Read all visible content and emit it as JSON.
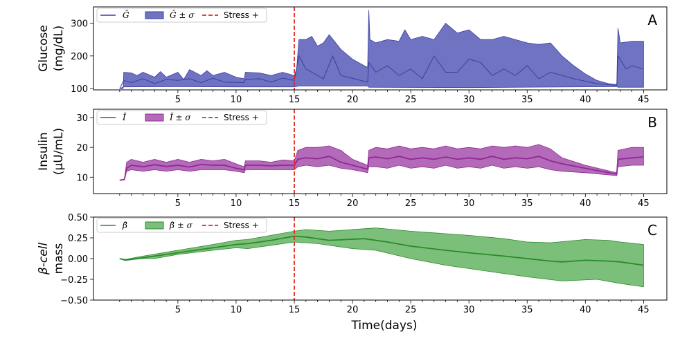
{
  "xlabel": "Time(days)",
  "stress_day": 15,
  "colors": {
    "stress": "#e0281e"
  },
  "chart_data": [
    {
      "type": "area",
      "panel_label": "A",
      "ylabel": [
        "Glucose",
        "(mg/dL)"
      ],
      "xlim": [
        -2.25,
        47
      ],
      "ylim": [
        96,
        350
      ],
      "xticks": [
        5,
        10,
        15,
        20,
        25,
        30,
        35,
        40,
        45
      ],
      "minor_xticks_step": 1,
      "yticks": [
        100,
        200,
        300
      ],
      "ytick_labels": [
        "100",
        "200",
        "300"
      ],
      "legend": [
        "Ḡ",
        "Ḡ ± σ",
        "Stress +"
      ],
      "legend_placement": "top-left",
      "line_color": "#3a3fa0",
      "fill_color": "#6f73c2",
      "mean": [
        [
          0,
          100
        ],
        [
          0.35,
          125
        ],
        [
          1,
          118
        ],
        [
          2,
          130
        ],
        [
          3,
          115
        ],
        [
          4,
          128
        ],
        [
          5,
          125
        ],
        [
          6,
          130
        ],
        [
          7,
          118
        ],
        [
          8,
          132
        ],
        [
          9,
          120
        ],
        [
          10.7,
          118
        ],
        [
          10.8,
          128
        ],
        [
          12,
          130
        ],
        [
          13,
          120
        ],
        [
          14,
          132
        ],
        [
          15,
          125
        ],
        [
          15.4,
          200
        ],
        [
          16,
          160
        ],
        [
          16.5,
          150
        ],
        [
          17.5,
          130
        ],
        [
          18.3,
          200
        ],
        [
          19,
          140
        ],
        [
          21.3,
          120
        ],
        [
          21.4,
          180
        ],
        [
          22,
          150
        ],
        [
          23,
          170
        ],
        [
          24,
          140
        ],
        [
          25,
          160
        ],
        [
          26,
          130
        ],
        [
          27,
          200
        ],
        [
          28,
          150
        ],
        [
          29,
          150
        ],
        [
          30,
          190
        ],
        [
          31,
          180
        ],
        [
          32,
          140
        ],
        [
          33,
          160
        ],
        [
          34,
          140
        ],
        [
          35,
          170
        ],
        [
          36,
          130
        ],
        [
          37,
          150
        ],
        [
          39,
          130
        ],
        [
          41,
          115
        ],
        [
          42.7,
          110
        ],
        [
          42.8,
          200
        ],
        [
          43.5,
          160
        ],
        [
          44,
          170
        ],
        [
          45,
          160
        ]
      ],
      "upper": [
        [
          0,
          100
        ],
        [
          0.3,
          100
        ],
        [
          0.35,
          150
        ],
        [
          1,
          148
        ],
        [
          1.5,
          140
        ],
        [
          2,
          150
        ],
        [
          3,
          135
        ],
        [
          3.5,
          152
        ],
        [
          4,
          135
        ],
        [
          5,
          150
        ],
        [
          5.5,
          128
        ],
        [
          6,
          158
        ],
        [
          7,
          140
        ],
        [
          7.5,
          155
        ],
        [
          8,
          140
        ],
        [
          9,
          150
        ],
        [
          10,
          135
        ],
        [
          10.7,
          130
        ],
        [
          10.8,
          150
        ],
        [
          12,
          148
        ],
        [
          13,
          140
        ],
        [
          14,
          150
        ],
        [
          15,
          140
        ],
        [
          15.2,
          160
        ],
        [
          15.4,
          250
        ],
        [
          16,
          250
        ],
        [
          16.5,
          260
        ],
        [
          17,
          230
        ],
        [
          17.5,
          240
        ],
        [
          18,
          265
        ],
        [
          19,
          220
        ],
        [
          20,
          190
        ],
        [
          21,
          170
        ],
        [
          21.3,
          165
        ],
        [
          21.4,
          340
        ],
        [
          21.5,
          250
        ],
        [
          22,
          240
        ],
        [
          23,
          250
        ],
        [
          24,
          245
        ],
        [
          24.5,
          280
        ],
        [
          25,
          250
        ],
        [
          26,
          260
        ],
        [
          27,
          250
        ],
        [
          28,
          300
        ],
        [
          29,
          270
        ],
        [
          30,
          280
        ],
        [
          31,
          250
        ],
        [
          32,
          250
        ],
        [
          33,
          260
        ],
        [
          34,
          250
        ],
        [
          35,
          240
        ],
        [
          36,
          235
        ],
        [
          37,
          240
        ],
        [
          38,
          200
        ],
        [
          39,
          170
        ],
        [
          40,
          145
        ],
        [
          41,
          125
        ],
        [
          42,
          115
        ],
        [
          42.7,
          112
        ],
        [
          42.8,
          285
        ],
        [
          43,
          240
        ],
        [
          44,
          245
        ],
        [
          45,
          245
        ]
      ],
      "lower": [
        [
          0,
          100
        ],
        [
          0.35,
          105
        ],
        [
          5,
          106
        ],
        [
          10,
          105
        ],
        [
          15,
          105
        ],
        [
          15.4,
          108
        ],
        [
          21.3,
          108
        ],
        [
          21.4,
          104
        ],
        [
          30,
          103
        ],
        [
          42.7,
          106
        ],
        [
          42.8,
          104
        ],
        [
          45,
          104
        ]
      ]
    },
    {
      "type": "area",
      "panel_label": "B",
      "ylabel": [
        "Insulin",
        "(μU/mL)"
      ],
      "xlim": [
        -2.25,
        47
      ],
      "ylim": [
        4.5,
        32.8
      ],
      "xticks": [
        5,
        10,
        15,
        20,
        25,
        30,
        35,
        40,
        45
      ],
      "minor_xticks_step": 1,
      "yticks": [
        10,
        20,
        30
      ],
      "ytick_labels": [
        "10",
        "20",
        "30"
      ],
      "legend": [
        "Ī",
        "Ī ± σ",
        "Stress +"
      ],
      "legend_placement": "top-left",
      "line_color": "#8e2a93",
      "fill_color": "#b36ab8",
      "mean": [
        [
          0,
          9
        ],
        [
          0.4,
          9.2
        ],
        [
          0.6,
          13
        ],
        [
          1,
          14
        ],
        [
          2,
          13.5
        ],
        [
          3,
          14.2
        ],
        [
          4,
          13.6
        ],
        [
          5,
          14
        ],
        [
          6,
          13.4
        ],
        [
          7,
          14.3
        ],
        [
          8,
          14
        ],
        [
          9,
          14
        ],
        [
          10,
          13
        ],
        [
          10.7,
          12.5
        ],
        [
          10.8,
          14
        ],
        [
          12,
          14
        ],
        [
          13,
          13.8
        ],
        [
          14,
          14
        ],
        [
          15,
          14
        ],
        [
          15.3,
          16
        ],
        [
          16,
          16.5
        ],
        [
          17,
          16.2
        ],
        [
          18,
          17
        ],
        [
          19,
          15
        ],
        [
          20,
          14
        ],
        [
          21.3,
          12.7
        ],
        [
          21.4,
          16.5
        ],
        [
          22,
          16.8
        ],
        [
          23,
          16.2
        ],
        [
          24,
          17
        ],
        [
          25,
          16
        ],
        [
          26,
          16.5
        ],
        [
          27,
          16
        ],
        [
          28,
          16.8
        ],
        [
          29,
          16
        ],
        [
          30,
          16.5
        ],
        [
          31,
          16
        ],
        [
          32,
          17
        ],
        [
          33,
          16
        ],
        [
          34,
          16.5
        ],
        [
          35,
          16.2
        ],
        [
          36,
          17
        ],
        [
          37,
          15.5
        ],
        [
          38,
          14.5
        ],
        [
          40,
          13
        ],
        [
          42.7,
          11
        ],
        [
          42.8,
          16
        ],
        [
          44,
          16.5
        ],
        [
          45,
          16.8
        ]
      ],
      "upper": [
        [
          0,
          9
        ],
        [
          0.4,
          9.2
        ],
        [
          0.6,
          15
        ],
        [
          1,
          16
        ],
        [
          2,
          15
        ],
        [
          3,
          16
        ],
        [
          4,
          15
        ],
        [
          5,
          16
        ],
        [
          6,
          15
        ],
        [
          7,
          16
        ],
        [
          8,
          15.5
        ],
        [
          9,
          16
        ],
        [
          10,
          14.5
        ],
        [
          10.7,
          13.5
        ],
        [
          10.8,
          15.5
        ],
        [
          12,
          15.5
        ],
        [
          13,
          15
        ],
        [
          14,
          15.8
        ],
        [
          15,
          15.5
        ],
        [
          15.3,
          19
        ],
        [
          16,
          20
        ],
        [
          17,
          20
        ],
        [
          18,
          20.5
        ],
        [
          19,
          19
        ],
        [
          20,
          16
        ],
        [
          21.3,
          14
        ],
        [
          21.4,
          19
        ],
        [
          22,
          20
        ],
        [
          23,
          19.5
        ],
        [
          24,
          20.5
        ],
        [
          25,
          19.5
        ],
        [
          26,
          20
        ],
        [
          27,
          19.5
        ],
        [
          28,
          20.5
        ],
        [
          29,
          19.5
        ],
        [
          30,
          20
        ],
        [
          31,
          19.5
        ],
        [
          32,
          20.5
        ],
        [
          33,
          20
        ],
        [
          34,
          20.5
        ],
        [
          35,
          20
        ],
        [
          36,
          21
        ],
        [
          37,
          19.5
        ],
        [
          38,
          16.5
        ],
        [
          40,
          14
        ],
        [
          42.7,
          11.5
        ],
        [
          42.8,
          19
        ],
        [
          44,
          20
        ],
        [
          45,
          20
        ]
      ],
      "lower": [
        [
          0,
          9
        ],
        [
          0.4,
          9.2
        ],
        [
          0.6,
          12
        ],
        [
          1,
          12.5
        ],
        [
          2,
          12
        ],
        [
          3,
          12.5
        ],
        [
          4,
          12
        ],
        [
          5,
          12.5
        ],
        [
          6,
          12
        ],
        [
          7,
          12.5
        ],
        [
          8,
          12.5
        ],
        [
          9,
          12.5
        ],
        [
          10,
          12
        ],
        [
          10.7,
          11.5
        ],
        [
          10.8,
          12.5
        ],
        [
          12,
          12.5
        ],
        [
          13,
          12.5
        ],
        [
          14,
          12.5
        ],
        [
          15,
          12.5
        ],
        [
          15.3,
          13.5
        ],
        [
          16,
          14
        ],
        [
          17,
          13.5
        ],
        [
          18,
          14
        ],
        [
          19,
          13
        ],
        [
          20,
          12.5
        ],
        [
          21.3,
          11.5
        ],
        [
          21.4,
          13.5
        ],
        [
          22,
          13.5
        ],
        [
          23,
          13
        ],
        [
          24,
          14
        ],
        [
          25,
          13
        ],
        [
          26,
          13.5
        ],
        [
          27,
          13
        ],
        [
          28,
          14
        ],
        [
          29,
          13
        ],
        [
          30,
          13.5
        ],
        [
          31,
          13
        ],
        [
          32,
          14
        ],
        [
          33,
          13
        ],
        [
          34,
          13.5
        ],
        [
          35,
          13
        ],
        [
          36,
          13.5
        ],
        [
          37,
          12.5
        ],
        [
          38,
          12
        ],
        [
          40,
          11.5
        ],
        [
          42.7,
          10.5
        ],
        [
          42.8,
          13.5
        ],
        [
          44,
          14
        ],
        [
          45,
          14
        ]
      ]
    },
    {
      "type": "area",
      "panel_label": "C",
      "ylabel": [
        "β-cell",
        "mass"
      ],
      "xlim": [
        -2.25,
        47
      ],
      "ylim": [
        -0.5,
        0.5
      ],
      "xticks": [
        5,
        10,
        15,
        20,
        25,
        30,
        35,
        40,
        45
      ],
      "minor_xticks_step": 1,
      "yticks": [
        0.5,
        0.25,
        0,
        -0.25,
        -0.5
      ],
      "ytick_labels": [
        "0.50",
        "0.25",
        "0.00",
        "−0.25",
        "−0.50"
      ],
      "legend": [
        "β̄",
        "β̄ ± σ",
        "Stress +"
      ],
      "legend_placement": "top-left",
      "line_color": "#2a8a2a",
      "fill_color": "#7cbf7a",
      "mean": [
        [
          0,
          0
        ],
        [
          0.5,
          -0.02
        ],
        [
          2,
          0.01
        ],
        [
          5,
          0.07
        ],
        [
          8,
          0.13
        ],
        [
          10,
          0.17
        ],
        [
          11,
          0.18
        ],
        [
          13,
          0.22
        ],
        [
          15,
          0.27
        ],
        [
          16,
          0.26
        ],
        [
          18,
          0.22
        ],
        [
          21,
          0.24
        ],
        [
          23,
          0.2
        ],
        [
          25,
          0.15
        ],
        [
          28,
          0.1
        ],
        [
          30,
          0.07
        ],
        [
          33,
          0.03
        ],
        [
          35,
          0
        ],
        [
          37,
          -0.03
        ],
        [
          38,
          -0.04
        ],
        [
          40,
          -0.02
        ],
        [
          42,
          -0.03
        ],
        [
          43,
          -0.04
        ],
        [
          45,
          -0.08
        ]
      ],
      "upper": [
        [
          0,
          0
        ],
        [
          0.5,
          -0.01
        ],
        [
          2,
          0.03
        ],
        [
          5,
          0.1
        ],
        [
          8,
          0.17
        ],
        [
          10,
          0.22
        ],
        [
          11,
          0.23
        ],
        [
          13,
          0.28
        ],
        [
          15,
          0.33
        ],
        [
          16,
          0.35
        ],
        [
          18,
          0.33
        ],
        [
          21,
          0.36
        ],
        [
          22,
          0.37
        ],
        [
          25,
          0.33
        ],
        [
          28,
          0.3
        ],
        [
          30,
          0.28
        ],
        [
          33,
          0.24
        ],
        [
          35,
          0.2
        ],
        [
          37,
          0.19
        ],
        [
          40,
          0.23
        ],
        [
          42,
          0.22
        ],
        [
          43,
          0.2
        ],
        [
          45,
          0.17
        ]
      ],
      "lower": [
        [
          0,
          0
        ],
        [
          0.5,
          -0.02
        ],
        [
          2,
          0
        ],
        [
          3,
          0
        ],
        [
          5,
          0.05
        ],
        [
          8,
          0.1
        ],
        [
          10,
          0.13
        ],
        [
          11,
          0.12
        ],
        [
          13,
          0.16
        ],
        [
          15,
          0.2
        ],
        [
          17,
          0.18
        ],
        [
          20,
          0.12
        ],
        [
          22,
          0.1
        ],
        [
          25,
          0
        ],
        [
          28,
          -0.08
        ],
        [
          30,
          -0.12
        ],
        [
          33,
          -0.18
        ],
        [
          35,
          -0.22
        ],
        [
          38,
          -0.27
        ],
        [
          41,
          -0.25
        ],
        [
          43,
          -0.3
        ],
        [
          45,
          -0.34
        ]
      ]
    }
  ]
}
